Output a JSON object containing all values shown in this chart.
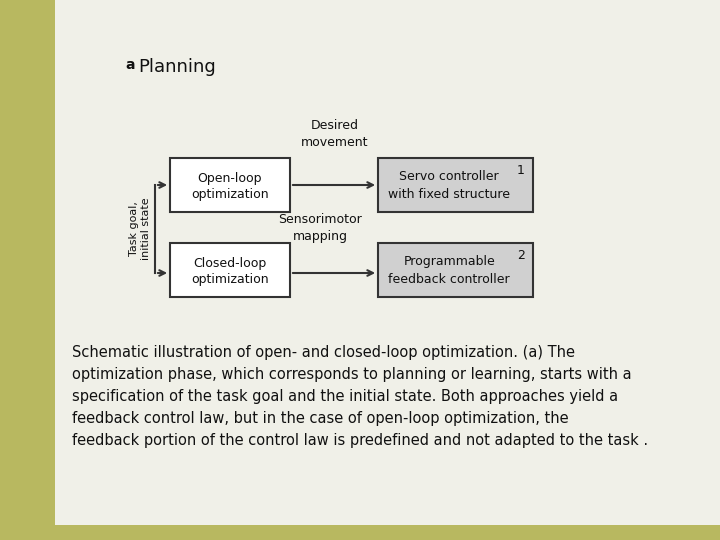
{
  "bg_left_color": "#b8b860",
  "bg_main_color": "#f0f0e8",
  "diagram_area_color": "#f0f0e8",
  "label_a": "a",
  "label_planning": "Planning",
  "label_task_goal": "Task goal,\ninitial state",
  "label_desired": "Desired\nmovement",
  "label_sensorimotor": "Sensorimotor\nmapping",
  "box1_line1": "Open-loop",
  "box1_line2": "optimization",
  "box2_line1": "Closed-loop",
  "box2_line2": "optimization",
  "box3_line1": "Servo controller",
  "box3_line2": "with fixed structure",
  "box4_line1": "Programmable",
  "box4_line2": "feedback controller",
  "num1": "1",
  "num2": "2",
  "caption_line1": "Schematic illustration of open- and closed-loop optimization. (a) The",
  "caption_line2": "optimization phase, which corresponds to planning or learning, starts with a",
  "caption_line3": "specification of the task goal and the initial state. Both approaches yield a",
  "caption_line4": "feedback control law, but in the case of open-loop optimization, the",
  "caption_line5": "feedback portion of the control law is predefined and not adapted to the task .",
  "box_white": "#ffffff",
  "box_gray": "#d0d0d0",
  "border_color": "#333333",
  "text_color": "#111111",
  "caption_color": "#111111"
}
